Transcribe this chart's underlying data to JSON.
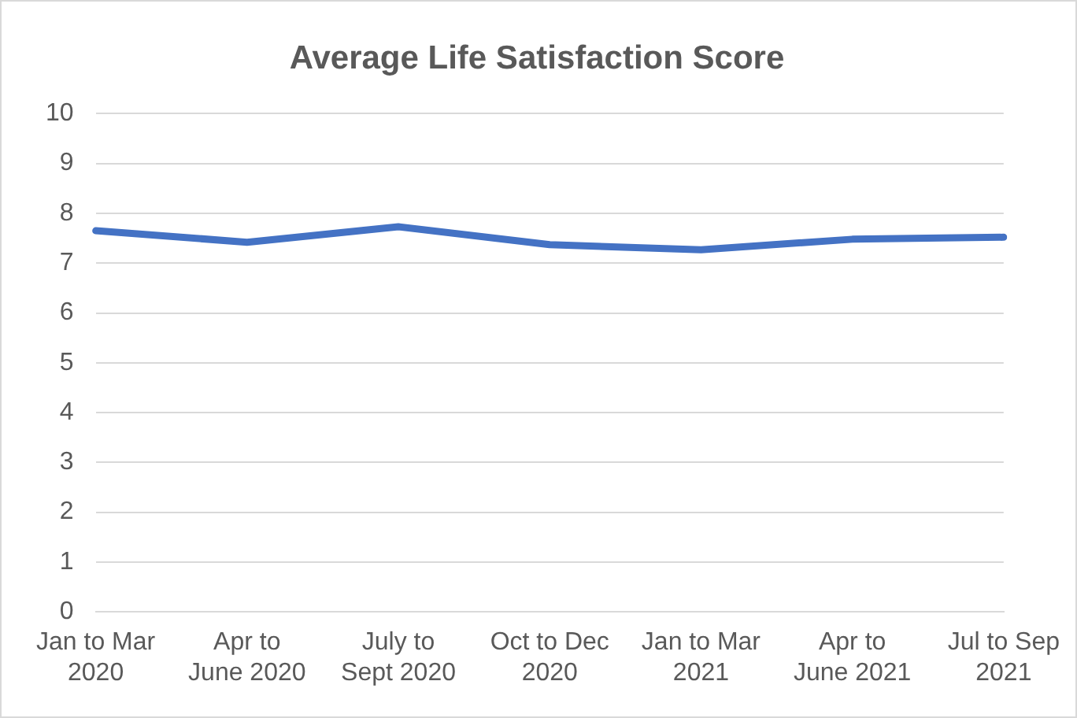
{
  "chart_data": {
    "type": "line",
    "title": "Average Life Satisfaction Score",
    "categories": [
      "Jan to Mar 2020",
      "Apr to June 2020",
      "July to Sept 2020",
      "Oct to Dec 2020",
      "Jan to Mar 2021",
      "Apr to June 2021",
      "Jul to Sep 2021"
    ],
    "series": [
      {
        "color": "#4472c4",
        "values": [
          7.65,
          7.42,
          7.73,
          7.37,
          7.27,
          7.48,
          7.52
        ]
      }
    ],
    "ylim": [
      0,
      10
    ],
    "yticks": [
      0,
      1,
      2,
      3,
      4,
      5,
      6,
      7,
      8,
      9,
      10
    ],
    "grid": "y",
    "legend": false,
    "marker": "none",
    "line_style": "solid"
  }
}
